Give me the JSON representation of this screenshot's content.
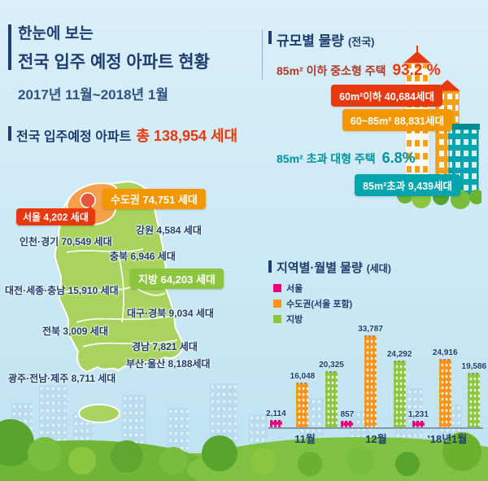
{
  "colors": {
    "navy": "#1d3e6e",
    "red": "#e8380d",
    "maroon": "#b13a26",
    "orange": "#f39800",
    "teal": "#00a5ad",
    "green": "#8cc63f",
    "pink": "#e6007e",
    "sky_background": "#cbe8f5"
  },
  "header": {
    "line1": "한눈에 보는",
    "line2": "전국 입주 예정 아파트 현황",
    "line3": "2017년  11월~2018년 1월"
  },
  "total": {
    "label": "전국 입주예정 아파트",
    "value": "총 138,954 세대"
  },
  "scale": {
    "title": "규모별 물량",
    "scope": "(전국)",
    "small_label": "85m² 이하 중소형 주택",
    "small_value": "93.2 %",
    "large_label": "85m² 초과 대형 주택",
    "large_value": "6.8%",
    "badges": [
      {
        "text": "60m²이하 40,684세대",
        "color": "#e8380d"
      },
      {
        "text": "60~85m² 88,831세대",
        "color": "#f39800"
      },
      {
        "text": "85m²초과 9,439세대",
        "color": "#00a5ad"
      }
    ]
  },
  "map": {
    "capital_badge": "수도권 74,751 세대",
    "seoul_badge": "서울 4,202 세대",
    "local_badge": "지방 64,203 세대",
    "labels": [
      {
        "region": "인천·경기",
        "text": "인천·경기 70,549 세대"
      },
      {
        "region": "강원",
        "text": "강원 4,584 세대"
      },
      {
        "region": "충북",
        "text": "충북 6,946 세대"
      },
      {
        "region": "대전·세종·충남",
        "text": "대전·세종·충남 15,910 세대"
      },
      {
        "region": "대구·경북",
        "text": "대구·경북 9,034 세대"
      },
      {
        "region": "전북",
        "text": "전북 3,009 세대"
      },
      {
        "region": "경남",
        "text": "경남 7,821 세대"
      },
      {
        "region": "부산·울산",
        "text": "부산·울산 8,188세대"
      },
      {
        "region": "광주·전남·제주",
        "text": "광주·전남·제주 8,711 세대"
      }
    ]
  },
  "monthly": {
    "title": "지역별·월별 물량",
    "unit": "(세대)"
  },
  "chart_data": {
    "type": "bar",
    "title": "지역별·월별 물량 (세대)",
    "categories": [
      "11월",
      "12월",
      "'18년1월"
    ],
    "series": [
      {
        "name": "서울",
        "color": "#e6007e",
        "values": [
          2114,
          857,
          1231
        ]
      },
      {
        "name": "수도권(서울 포함)",
        "color": "#f7941d",
        "values": [
          16048,
          33787,
          24916
        ]
      },
      {
        "name": "지방",
        "color": "#8cc63f",
        "values": [
          20325,
          24292,
          19586
        ]
      }
    ],
    "xlabel": "",
    "ylabel": "세대",
    "ylim": [
      0,
      34000
    ],
    "grid": false,
    "legend_position": "top-left"
  }
}
